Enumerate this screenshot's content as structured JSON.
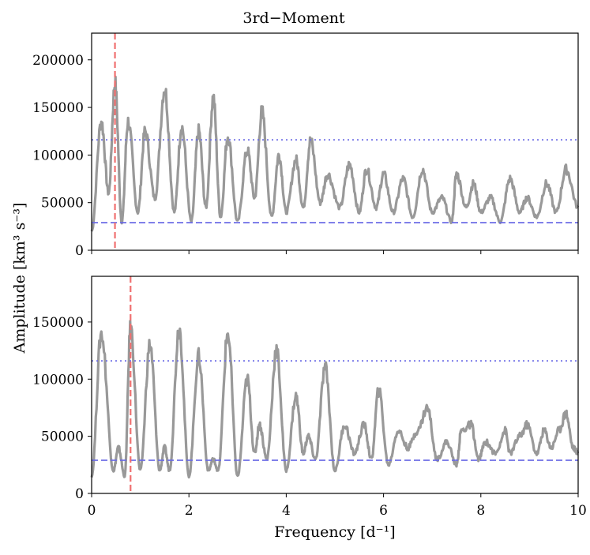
{
  "chart_data": {
    "type": "line",
    "title": "3rd−Moment",
    "xlabel": "Frequency [d⁻¹]",
    "ylabel": "Amplitude [km³ s⁻³]",
    "xlim": [
      0,
      10
    ],
    "xticks": [
      "0",
      "2",
      "4",
      "6",
      "8",
      "10"
    ],
    "colors": {
      "series": "#999999",
      "marker": "#f07070",
      "threshold": "#6a6ae6"
    },
    "panels": [
      {
        "name": "top",
        "ylim": [
          0,
          228000
        ],
        "yticks": [
          "0",
          "50000",
          "100000",
          "150000",
          "200000"
        ],
        "marker_frequency": 0.48,
        "threshold_dashed": 29000,
        "threshold_dotted": 116000,
        "peaks": [
          [
            0,
            20000
          ],
          [
            0.2,
            135000
          ],
          [
            0.35,
            60000
          ],
          [
            0.48,
            175000
          ],
          [
            0.62,
            30000
          ],
          [
            0.75,
            135000
          ],
          [
            0.95,
            40000
          ],
          [
            1.1,
            125000
          ],
          [
            1.3,
            55000
          ],
          [
            1.5,
            170000
          ],
          [
            1.7,
            40000
          ],
          [
            1.85,
            130000
          ],
          [
            2.05,
            30000
          ],
          [
            2.2,
            125000
          ],
          [
            2.35,
            45000
          ],
          [
            2.5,
            160000
          ],
          [
            2.65,
            35000
          ],
          [
            2.8,
            120000
          ],
          [
            3.0,
            30000
          ],
          [
            3.2,
            105000
          ],
          [
            3.35,
            55000
          ],
          [
            3.5,
            145000
          ],
          [
            3.7,
            35000
          ],
          [
            3.85,
            100000
          ],
          [
            4.0,
            40000
          ],
          [
            4.2,
            95000
          ],
          [
            4.35,
            45000
          ],
          [
            4.5,
            115000
          ],
          [
            4.7,
            50000
          ],
          [
            4.85,
            80000
          ],
          [
            5.1,
            45000
          ],
          [
            5.3,
            90000
          ],
          [
            5.5,
            40000
          ],
          [
            5.65,
            85000
          ],
          [
            5.85,
            45000
          ],
          [
            6.0,
            80000
          ],
          [
            6.2,
            40000
          ],
          [
            6.4,
            75000
          ],
          [
            6.6,
            35000
          ],
          [
            6.8,
            85000
          ],
          [
            7.0,
            40000
          ],
          [
            7.2,
            55000
          ],
          [
            7.4,
            30000
          ],
          [
            7.5,
            80000
          ],
          [
            7.7,
            45000
          ],
          [
            7.85,
            70000
          ],
          [
            8.0,
            40000
          ],
          [
            8.2,
            55000
          ],
          [
            8.4,
            30000
          ],
          [
            8.6,
            75000
          ],
          [
            8.8,
            40000
          ],
          [
            8.95,
            55000
          ],
          [
            9.15,
            35000
          ],
          [
            9.35,
            70000
          ],
          [
            9.55,
            40000
          ],
          [
            9.75,
            85000
          ],
          [
            10,
            45000
          ]
        ]
      },
      {
        "name": "bottom",
        "ylim": [
          0,
          190000
        ],
        "yticks": [
          "0",
          "50000",
          "100000",
          "150000"
        ],
        "marker_frequency": 0.8,
        "threshold_dashed": 29000,
        "threshold_dotted": 116000,
        "peaks": [
          [
            0,
            15000
          ],
          [
            0.2,
            140000
          ],
          [
            0.45,
            20000
          ],
          [
            0.55,
            40000
          ],
          [
            0.68,
            15000
          ],
          [
            0.8,
            145000
          ],
          [
            1.0,
            20000
          ],
          [
            1.2,
            130000
          ],
          [
            1.4,
            20000
          ],
          [
            1.5,
            40000
          ],
          [
            1.6,
            20000
          ],
          [
            1.8,
            145000
          ],
          [
            2.0,
            15000
          ],
          [
            2.2,
            120000
          ],
          [
            2.4,
            20000
          ],
          [
            2.5,
            30000
          ],
          [
            2.6,
            20000
          ],
          [
            2.8,
            140000
          ],
          [
            3.0,
            15000
          ],
          [
            3.2,
            100000
          ],
          [
            3.35,
            35000
          ],
          [
            3.45,
            60000
          ],
          [
            3.6,
            30000
          ],
          [
            3.8,
            125000
          ],
          [
            4.0,
            20000
          ],
          [
            4.2,
            85000
          ],
          [
            4.35,
            35000
          ],
          [
            4.45,
            50000
          ],
          [
            4.6,
            30000
          ],
          [
            4.8,
            110000
          ],
          [
            5.0,
            20000
          ],
          [
            5.2,
            60000
          ],
          [
            5.4,
            35000
          ],
          [
            5.6,
            60000
          ],
          [
            5.75,
            30000
          ],
          [
            5.9,
            90000
          ],
          [
            6.1,
            25000
          ],
          [
            6.3,
            55000
          ],
          [
            6.5,
            40000
          ],
          [
            6.7,
            55000
          ],
          [
            6.9,
            75000
          ],
          [
            7.1,
            30000
          ],
          [
            7.3,
            45000
          ],
          [
            7.5,
            25000
          ],
          [
            7.6,
            55000
          ],
          [
            7.8,
            60000
          ],
          [
            7.95,
            30000
          ],
          [
            8.1,
            45000
          ],
          [
            8.3,
            35000
          ],
          [
            8.5,
            55000
          ],
          [
            8.6,
            35000
          ],
          [
            8.8,
            50000
          ],
          [
            8.95,
            60000
          ],
          [
            9.15,
            35000
          ],
          [
            9.3,
            55000
          ],
          [
            9.45,
            40000
          ],
          [
            9.6,
            55000
          ],
          [
            9.75,
            70000
          ],
          [
            9.9,
            40000
          ],
          [
            10,
            35000
          ]
        ]
      }
    ]
  }
}
